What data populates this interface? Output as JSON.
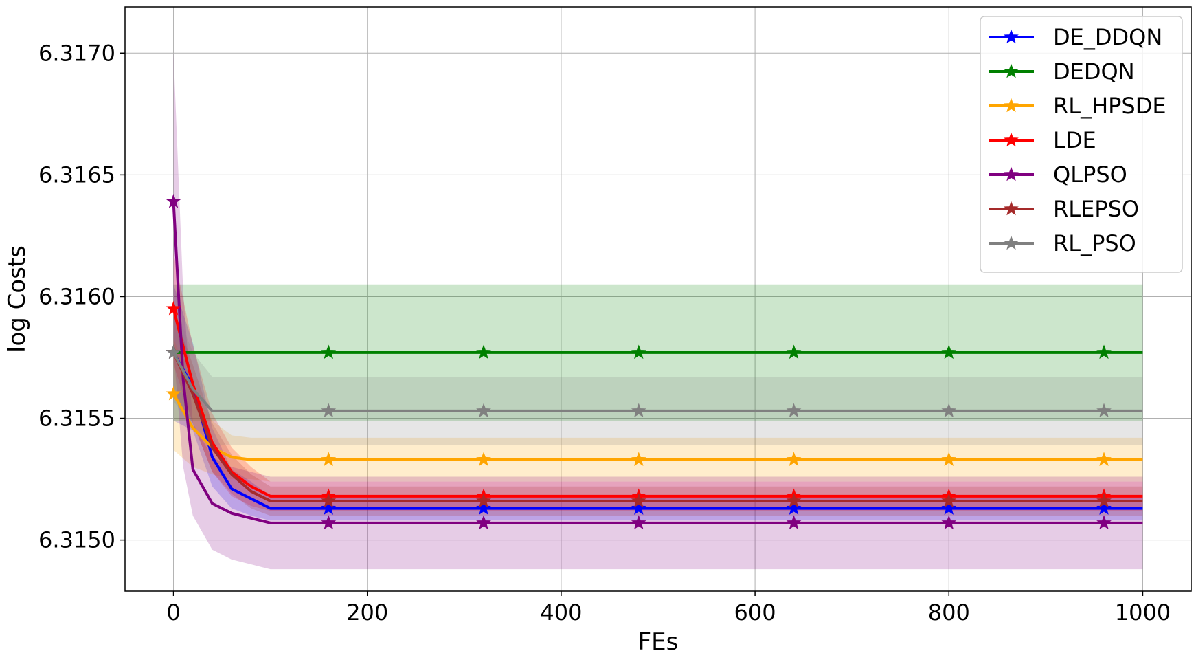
{
  "chart_data": {
    "type": "line",
    "title": "",
    "xlabel": "FEs",
    "ylabel": "log Costs",
    "xlim": [
      -50,
      1050
    ],
    "ylim": [
      6.31479,
      6.31719
    ],
    "xticks": [
      0,
      200,
      400,
      600,
      800,
      1000
    ],
    "xtick_labels": [
      "0",
      "200",
      "400",
      "600",
      "800",
      "1000"
    ],
    "yticks": [
      6.315,
      6.3155,
      6.316,
      6.3165,
      6.317
    ],
    "ytick_labels": [
      "6.3150",
      "6.3155",
      "6.3160",
      "6.3165",
      "6.3170"
    ],
    "grid": true,
    "legend_position": "top-right",
    "marker_x": [
      0,
      160,
      320,
      480,
      640,
      800,
      960
    ],
    "series": [
      {
        "name": "DE_DDQN",
        "color": "#0000ff",
        "x": [
          0,
          20,
          40,
          60,
          80,
          100,
          160,
          320,
          480,
          640,
          800,
          960,
          1000
        ],
        "y": [
          6.31577,
          6.31563,
          6.31534,
          6.31521,
          6.31517,
          6.31513,
          6.31513,
          6.31513,
          6.31513,
          6.31513,
          6.31513,
          6.31513,
          6.31513
        ],
        "band_lower": [
          6.31549,
          6.31545,
          6.31522,
          6.31513,
          6.3151,
          6.31508,
          6.31508,
          6.31508,
          6.31508,
          6.31508,
          6.31508,
          6.31508,
          6.31508
        ],
        "band_upper": [
          6.31605,
          6.31581,
          6.31546,
          6.31529,
          6.31524,
          6.31518,
          6.31518,
          6.31518,
          6.31518,
          6.31518,
          6.31518,
          6.31518,
          6.31518
        ]
      },
      {
        "name": "DEDQN",
        "color": "#008000",
        "x": [
          0,
          20,
          40,
          60,
          80,
          100,
          160,
          320,
          480,
          640,
          800,
          960,
          1000
        ],
        "y": [
          6.31577,
          6.31577,
          6.31577,
          6.31577,
          6.31577,
          6.31577,
          6.31577,
          6.31577,
          6.31577,
          6.31577,
          6.31577,
          6.31577,
          6.31577
        ],
        "band_lower": [
          6.31549,
          6.31549,
          6.31549,
          6.31549,
          6.31549,
          6.31549,
          6.31549,
          6.31549,
          6.31549,
          6.31549,
          6.31549,
          6.31549,
          6.31549
        ],
        "band_upper": [
          6.31605,
          6.31605,
          6.31605,
          6.31605,
          6.31605,
          6.31605,
          6.31605,
          6.31605,
          6.31605,
          6.31605,
          6.31605,
          6.31605,
          6.31605
        ]
      },
      {
        "name": "RL_HPSDE",
        "color": "#ffa500",
        "x": [
          0,
          20,
          40,
          60,
          80,
          100,
          160,
          320,
          480,
          640,
          800,
          960,
          1000
        ],
        "y": [
          6.3156,
          6.31546,
          6.31538,
          6.31534,
          6.31533,
          6.31533,
          6.31533,
          6.31533,
          6.31533,
          6.31533,
          6.31533,
          6.31533,
          6.31533
        ],
        "band_lower": [
          6.31537,
          6.3153,
          6.31527,
          6.31525,
          6.31525,
          6.31524,
          6.31524,
          6.31524,
          6.31524,
          6.31524,
          6.31524,
          6.31524,
          6.31524
        ],
        "band_upper": [
          6.31583,
          6.31562,
          6.31549,
          6.31543,
          6.31542,
          6.31542,
          6.31542,
          6.31542,
          6.31542,
          6.31542,
          6.31542,
          6.31542,
          6.31542
        ]
      },
      {
        "name": "LDE",
        "color": "#ff0000",
        "x": [
          0,
          20,
          40,
          60,
          80,
          100,
          160,
          320,
          480,
          640,
          800,
          960,
          1000
        ],
        "y": [
          6.31595,
          6.31564,
          6.3154,
          6.31528,
          6.31522,
          6.31518,
          6.31518,
          6.31518,
          6.31518,
          6.31518,
          6.31518,
          6.31518,
          6.31518
        ],
        "band_lower": [
          6.31572,
          6.31548,
          6.31528,
          6.31518,
          6.31514,
          6.31512,
          6.31512,
          6.31512,
          6.31512,
          6.31512,
          6.31512,
          6.31512,
          6.31512
        ],
        "band_upper": [
          6.31618,
          6.3158,
          6.31552,
          6.31538,
          6.3153,
          6.31524,
          6.31524,
          6.31524,
          6.31524,
          6.31524,
          6.31524,
          6.31524,
          6.31524
        ]
      },
      {
        "name": "QLPSO",
        "color": "#800080",
        "x": [
          0,
          10,
          20,
          40,
          60,
          80,
          100,
          160,
          320,
          480,
          640,
          800,
          960,
          1000
        ],
        "y": [
          6.31639,
          6.31566,
          6.31529,
          6.31515,
          6.31511,
          6.31509,
          6.31507,
          6.31507,
          6.31507,
          6.31507,
          6.31507,
          6.31507,
          6.31507,
          6.31507
        ],
        "band_lower": [
          6.31578,
          6.3153,
          6.3151,
          6.31496,
          6.31492,
          6.3149,
          6.31488,
          6.31488,
          6.31488,
          6.31488,
          6.31488,
          6.31488,
          6.31488,
          6.31488
        ],
        "band_upper": [
          6.317,
          6.31602,
          6.31548,
          6.31534,
          6.3153,
          6.31528,
          6.31526,
          6.31526,
          6.31526,
          6.31526,
          6.31526,
          6.31526,
          6.31526,
          6.31526
        ]
      },
      {
        "name": "RLEPSO",
        "color": "#a52a2a",
        "x": [
          0,
          20,
          40,
          60,
          80,
          100,
          160,
          320,
          480,
          640,
          800,
          960,
          1000
        ],
        "y": [
          6.31577,
          6.3156,
          6.31538,
          6.31527,
          6.3152,
          6.31516,
          6.31516,
          6.31516,
          6.31516,
          6.31516,
          6.31516,
          6.31516,
          6.31516
        ],
        "band_lower": [
          6.3156,
          6.31548,
          6.31528,
          6.31519,
          6.31513,
          6.3151,
          6.3151,
          6.3151,
          6.3151,
          6.3151,
          6.3151,
          6.3151,
          6.3151
        ],
        "band_upper": [
          6.31594,
          6.31572,
          6.31548,
          6.31535,
          6.31527,
          6.31522,
          6.31522,
          6.31522,
          6.31522,
          6.31522,
          6.31522,
          6.31522,
          6.31522
        ]
      },
      {
        "name": "RL_PSO",
        "color": "#808080",
        "x": [
          0,
          20,
          40,
          60,
          80,
          100,
          160,
          320,
          480,
          640,
          800,
          960,
          1000
        ],
        "y": [
          6.31577,
          6.31562,
          6.31553,
          6.31553,
          6.31553,
          6.31553,
          6.31553,
          6.31553,
          6.31553,
          6.31553,
          6.31553,
          6.31553,
          6.31553
        ],
        "band_lower": [
          6.31557,
          6.31547,
          6.31539,
          6.31539,
          6.31539,
          6.31539,
          6.31539,
          6.31539,
          6.31539,
          6.31539,
          6.31539,
          6.31539,
          6.31539
        ],
        "band_upper": [
          6.31597,
          6.31577,
          6.31567,
          6.31567,
          6.31567,
          6.31567,
          6.31567,
          6.31567,
          6.31567,
          6.31567,
          6.31567,
          6.31567,
          6.31567
        ]
      }
    ]
  }
}
